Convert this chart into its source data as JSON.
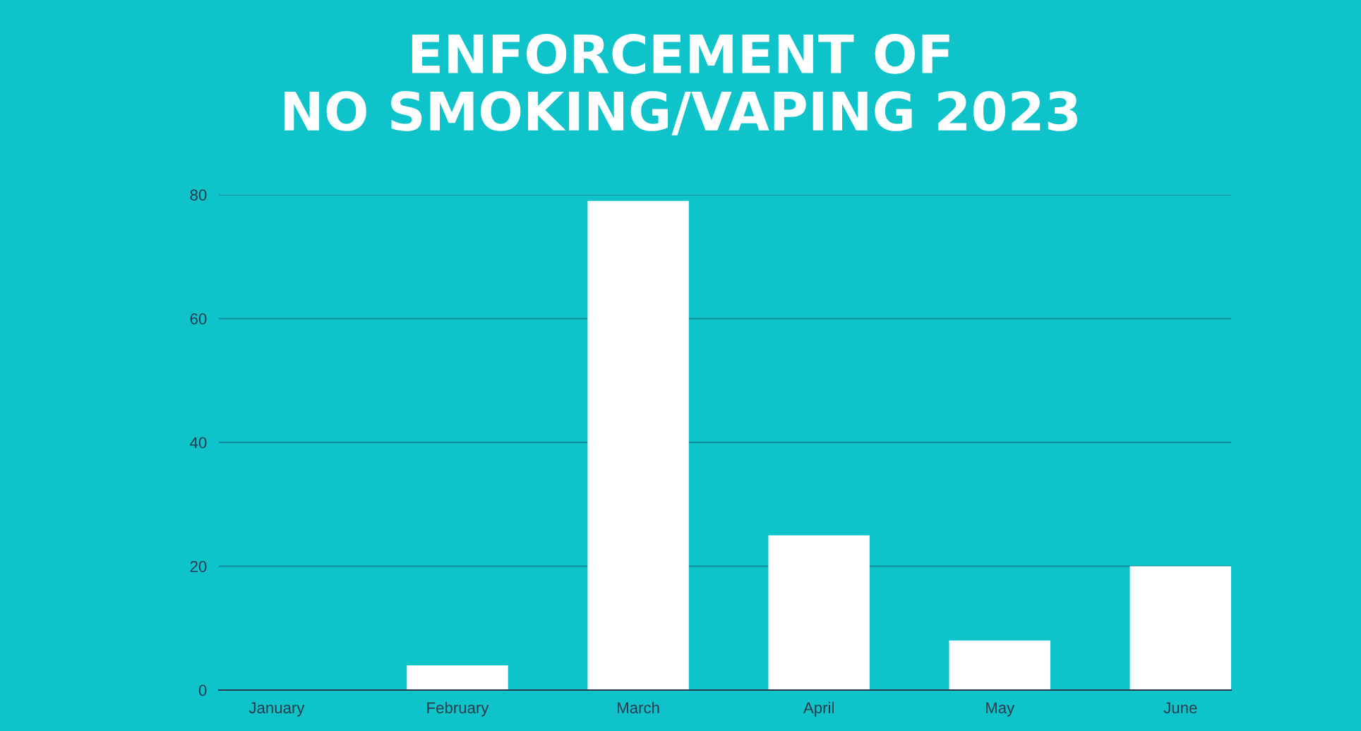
{
  "chart_data": {
    "type": "bar",
    "title": "ENFORCEMENT OF\nNO SMOKING/VAPING 2023",
    "categories": [
      "January",
      "February",
      "March",
      "April",
      "May",
      "June"
    ],
    "values": [
      0,
      4,
      79,
      25,
      8,
      20
    ],
    "color": "#ffffff",
    "ylim": [
      0,
      80
    ],
    "yticks": [
      0,
      20,
      40,
      60,
      80
    ],
    "grid": "y",
    "legend": false
  }
}
